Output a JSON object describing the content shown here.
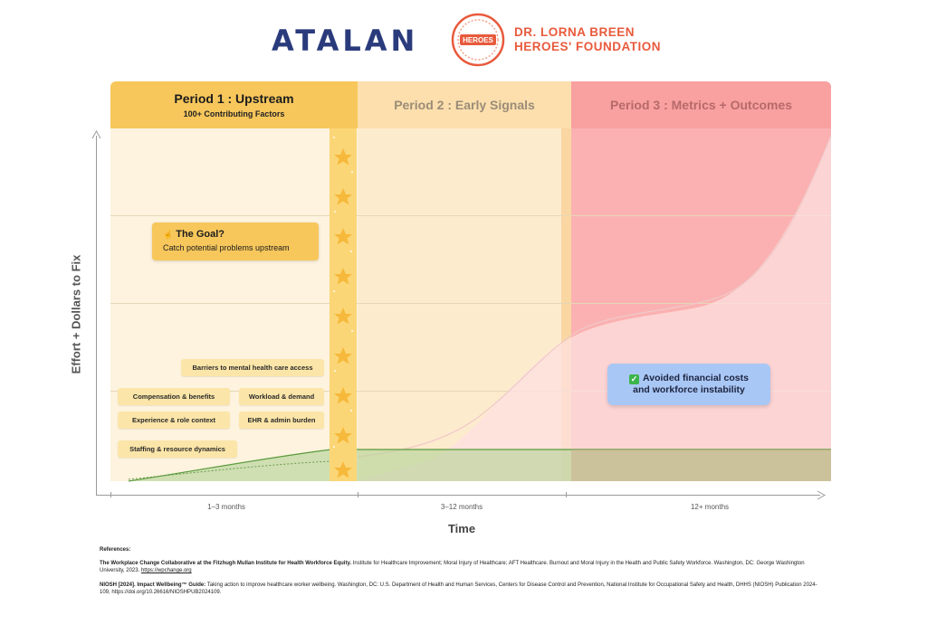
{
  "header": {
    "atalan_logo": "ATALAN",
    "seal_text": "HEROES",
    "foundation_line1": "DR. LORNA BREEN",
    "foundation_line2": "HEROES' FOUNDATION"
  },
  "periods": [
    {
      "title": "Period 1 : Upstream",
      "subtitle": "100+ Contributing Factors"
    },
    {
      "title": "Period 2 : Early Signals"
    },
    {
      "title": "Period 3 : Metrics + Outcomes"
    }
  ],
  "axes": {
    "ylabel": "Effort + Dollars to Fix",
    "xlabel": "Time",
    "xticks": [
      "1–3 months",
      "3–12 months",
      "12+ months"
    ]
  },
  "goal": {
    "icon": "pointing-hand-icon",
    "title": "The Goal?",
    "text": "Catch potential problems upstream"
  },
  "factors": [
    "Barriers to mental health care access",
    "Compensation & benefits",
    "Workload & demand",
    "Experience & role context",
    "EHR & admin burden",
    "Staffing & resource dynamics"
  ],
  "outcome": {
    "icon": "check-mark-icon",
    "line1": "Avoided financial costs",
    "line2": "and workforce instability"
  },
  "colors": {
    "period1": "#f7c75c",
    "period2": "#fcdfad",
    "period3": "#f9a0a0",
    "green_curve": "#5a9a3c",
    "outcome_box": "#a9c7f5"
  },
  "references": {
    "title": "References:",
    "ref1_bold": "The Workplace Change Collaborative at the Fitzhugh Mullan Institute for Health Workforce Equity.",
    "ref1_text": " Institute for Healthcare Improvement; Moral Injury of Healthcare; AFT Healthcare. Burnout and Moral Injury in the Health and Public Safety Workforce. Washington, DC: George Washington University, 2023.",
    "ref1_link": "https://wpchange.org",
    "ref2_bold": "NIOSH [2024]. Impact Wellbeing™ Guide:",
    "ref2_text": " Taking action to improve healthcare worker wellbeing. Washington, DC: U.S. Department of Health and Human Services, Centers for Disease Control and Prevention, National Institute for Occupational Safety and Health, DHHS (NIOSH) Publication 2024-109, https://doi.org/10.26616/NIOSHPUB2024109."
  }
}
